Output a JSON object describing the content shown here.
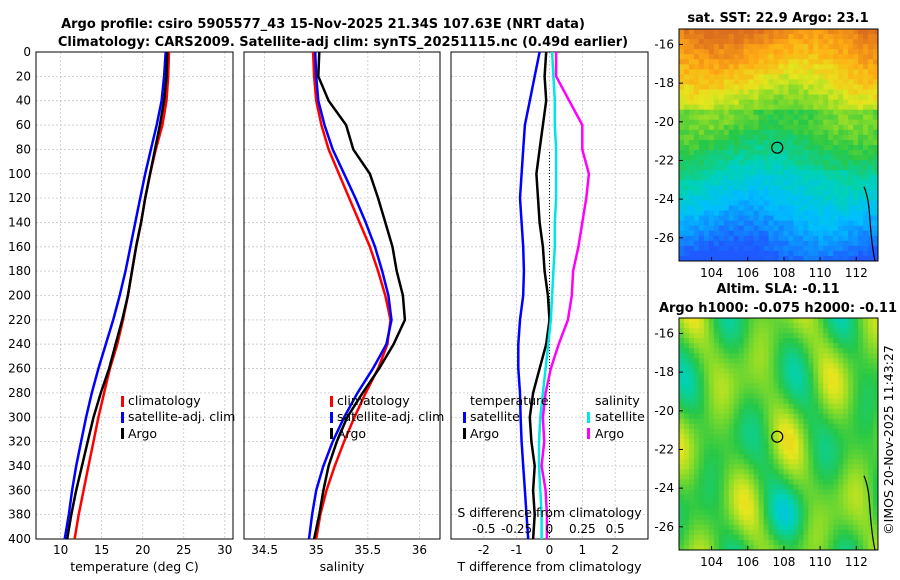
{
  "header": {
    "title_line1": "Argo profile: csiro 5905577_43 15-Nov-2025 21.34S 107.63E (NRT data)",
    "title_line2": "Climatology: CARS2009. Satellite-adj clim: synTS_20251115.nc (0.49d earlier)"
  },
  "watermark": "©IMOS 20-Nov-2025 11:43:27",
  "colors": {
    "climatology": "#ff0000",
    "satellite": "#0000ff",
    "argo": "#000000",
    "sal_satellite": "#00e5e5",
    "sal_argo": "#ff00ff"
  },
  "chart_data": [
    {
      "type": "line",
      "name": "temperature-profile",
      "xlabel": "temperature (deg C)",
      "ylabel": "",
      "xlim": [
        7,
        31
      ],
      "ylim": [
        400,
        0
      ],
      "xticks": [
        10,
        15,
        20,
        25,
        30
      ],
      "yticks": [
        0,
        20,
        40,
        60,
        80,
        100,
        120,
        140,
        160,
        180,
        200,
        220,
        240,
        260,
        280,
        300,
        320,
        340,
        360,
        380,
        400
      ],
      "legend": [
        "climatology",
        "satellite-adj. clim",
        "Argo"
      ],
      "legend_position": "right-middle",
      "series": [
        {
          "name": "climatology",
          "color": "#ff0000",
          "points": [
            [
              23.2,
              0
            ],
            [
              23.1,
              20
            ],
            [
              22.9,
              40
            ],
            [
              22.4,
              60
            ],
            [
              21.6,
              80
            ],
            [
              20.9,
              100
            ],
            [
              20.3,
              120
            ],
            [
              19.8,
              140
            ],
            [
              19.2,
              160
            ],
            [
              18.7,
              180
            ],
            [
              18.2,
              200
            ],
            [
              17.6,
              220
            ],
            [
              16.9,
              240
            ],
            [
              16.0,
              260
            ],
            [
              15.3,
              280
            ],
            [
              14.6,
              300
            ],
            [
              14.0,
              320
            ],
            [
              13.4,
              340
            ],
            [
              12.8,
              360
            ],
            [
              12.2,
              380
            ],
            [
              11.7,
              400
            ]
          ]
        },
        {
          "name": "satellite-adj. clim",
          "color": "#0000ff",
          "points": [
            [
              22.8,
              0
            ],
            [
              22.6,
              20
            ],
            [
              22.3,
              40
            ],
            [
              21.7,
              60
            ],
            [
              21.0,
              80
            ],
            [
              20.3,
              100
            ],
            [
              19.7,
              120
            ],
            [
              19.1,
              140
            ],
            [
              18.5,
              160
            ],
            [
              17.9,
              180
            ],
            [
              17.2,
              200
            ],
            [
              16.4,
              220
            ],
            [
              15.5,
              240
            ],
            [
              14.6,
              260
            ],
            [
              13.8,
              280
            ],
            [
              13.1,
              300
            ],
            [
              12.5,
              320
            ],
            [
              11.9,
              340
            ],
            [
              11.4,
              360
            ],
            [
              11.0,
              380
            ],
            [
              10.5,
              400
            ]
          ]
        },
        {
          "name": "Argo",
          "color": "#000000",
          "points": [
            [
              23.0,
              0
            ],
            [
              22.9,
              20
            ],
            [
              22.6,
              40
            ],
            [
              22.1,
              60
            ],
            [
              21.5,
              80
            ],
            [
              20.9,
              100
            ],
            [
              20.3,
              120
            ],
            [
              19.8,
              140
            ],
            [
              19.2,
              160
            ],
            [
              18.7,
              180
            ],
            [
              18.2,
              200
            ],
            [
              17.5,
              220
            ],
            [
              16.7,
              240
            ],
            [
              15.9,
              260
            ],
            [
              14.9,
              280
            ],
            [
              14.0,
              300
            ],
            [
              13.3,
              320
            ],
            [
              12.6,
              340
            ],
            [
              11.9,
              360
            ],
            [
              11.3,
              380
            ],
            [
              10.8,
              400
            ]
          ]
        }
      ]
    },
    {
      "type": "line",
      "name": "salinity-profile",
      "xlabel": "salinity",
      "ylabel": "",
      "xlim": [
        34.3,
        36.2
      ],
      "ylim": [
        400,
        0
      ],
      "xticks": [
        34.5,
        35,
        35.5,
        36
      ],
      "xtick_labels": [
        "34.5",
        "35",
        "35.5",
        "36"
      ],
      "legend": [
        "climatology",
        "satellite-adj. clim",
        "Argo"
      ],
      "legend_position": "right-middle",
      "series": [
        {
          "name": "climatology",
          "color": "#ff0000",
          "points": [
            [
              34.97,
              0
            ],
            [
              34.98,
              20
            ],
            [
              35.0,
              40
            ],
            [
              35.05,
              60
            ],
            [
              35.12,
              80
            ],
            [
              35.22,
              100
            ],
            [
              35.32,
              120
            ],
            [
              35.42,
              140
            ],
            [
              35.52,
              160
            ],
            [
              35.6,
              180
            ],
            [
              35.67,
              200
            ],
            [
              35.72,
              220
            ],
            [
              35.69,
              240
            ],
            [
              35.6,
              260
            ],
            [
              35.48,
              280
            ],
            [
              35.37,
              300
            ],
            [
              35.27,
              320
            ],
            [
              35.18,
              340
            ],
            [
              35.1,
              360
            ],
            [
              35.04,
              380
            ],
            [
              35.0,
              400
            ]
          ]
        },
        {
          "name": "satellite-adj. clim",
          "color": "#0000ff",
          "points": [
            [
              34.99,
              0
            ],
            [
              35.0,
              20
            ],
            [
              35.02,
              40
            ],
            [
              35.08,
              60
            ],
            [
              35.16,
              80
            ],
            [
              35.27,
              100
            ],
            [
              35.38,
              120
            ],
            [
              35.48,
              140
            ],
            [
              35.57,
              160
            ],
            [
              35.64,
              180
            ],
            [
              35.7,
              200
            ],
            [
              35.73,
              220
            ],
            [
              35.68,
              240
            ],
            [
              35.55,
              260
            ],
            [
              35.4,
              280
            ],
            [
              35.27,
              300
            ],
            [
              35.16,
              320
            ],
            [
              35.07,
              340
            ],
            [
              35.0,
              360
            ],
            [
              34.96,
              380
            ],
            [
              34.93,
              400
            ]
          ]
        },
        {
          "name": "Argo",
          "color": "#000000",
          "points": [
            [
              35.03,
              0
            ],
            [
              35.02,
              20
            ],
            [
              35.12,
              40
            ],
            [
              35.29,
              60
            ],
            [
              35.36,
              80
            ],
            [
              35.52,
              100
            ],
            [
              35.6,
              120
            ],
            [
              35.67,
              140
            ],
            [
              35.74,
              160
            ],
            [
              35.78,
              180
            ],
            [
              35.84,
              200
            ],
            [
              35.86,
              220
            ],
            [
              35.75,
              240
            ],
            [
              35.61,
              260
            ],
            [
              35.45,
              280
            ],
            [
              35.3,
              300
            ],
            [
              35.2,
              320
            ],
            [
              35.12,
              340
            ],
            [
              35.07,
              360
            ],
            [
              35.03,
              380
            ],
            [
              34.98,
              400
            ]
          ]
        }
      ]
    },
    {
      "type": "line",
      "name": "difference-profile",
      "xlabel": "T difference from climatology",
      "top_xlabel": "S difference from climatology",
      "xlim": [
        -3,
        3
      ],
      "ylim": [
        400,
        0
      ],
      "xticks": [
        -2,
        -1,
        0,
        1,
        2
      ],
      "xtick_labels": [
        "-2",
        "-1",
        "0",
        "1",
        "2"
      ],
      "top_xticks": [
        -0.5,
        -0.25,
        0,
        0.25,
        0.5
      ],
      "top_xtick_labels": [
        "-0.5",
        "-0.25",
        "0",
        "0.25",
        "0.5"
      ],
      "top_xlim": [
        -0.75,
        0.75
      ],
      "legend_temperature_title": "temperature",
      "legend_temperature": [
        "satellite",
        "Argo"
      ],
      "legend_salinity_title": "salinity",
      "legend_salinity": [
        "satellite",
        "Argo"
      ],
      "series": [
        {
          "name": "T satellite",
          "color": "#0000ff",
          "points": [
            [
              -0.3,
              0
            ],
            [
              -0.45,
              20
            ],
            [
              -0.6,
              40
            ],
            [
              -0.75,
              60
            ],
            [
              -0.8,
              80
            ],
            [
              -0.85,
              100
            ],
            [
              -0.9,
              120
            ],
            [
              -0.85,
              140
            ],
            [
              -0.8,
              160
            ],
            [
              -0.78,
              180
            ],
            [
              -0.8,
              200
            ],
            [
              -0.9,
              220
            ],
            [
              -0.95,
              240
            ],
            [
              -0.95,
              260
            ],
            [
              -0.9,
              280
            ],
            [
              -0.88,
              300
            ],
            [
              -0.85,
              320
            ],
            [
              -0.8,
              340
            ],
            [
              -0.75,
              360
            ],
            [
              -0.7,
              380
            ],
            [
              -0.65,
              400
            ]
          ]
        },
        {
          "name": "T Argo",
          "color": "#000000",
          "points": [
            [
              -0.1,
              0
            ],
            [
              -0.15,
              20
            ],
            [
              -0.1,
              40
            ],
            [
              -0.2,
              60
            ],
            [
              -0.3,
              80
            ],
            [
              -0.4,
              100
            ],
            [
              -0.35,
              120
            ],
            [
              -0.3,
              140
            ],
            [
              -0.2,
              160
            ],
            [
              -0.15,
              180
            ],
            [
              -0.05,
              200
            ],
            [
              0.0,
              220
            ],
            [
              -0.1,
              240
            ],
            [
              -0.3,
              260
            ],
            [
              -0.5,
              280
            ],
            [
              -0.6,
              300
            ],
            [
              -0.55,
              320
            ],
            [
              -0.45,
              340
            ],
            [
              -0.5,
              360
            ],
            [
              -0.45,
              380
            ],
            [
              -0.5,
              400
            ]
          ]
        },
        {
          "name": "S satellite",
          "color": "#00e5e5",
          "points": [
            [
              0.02,
              0
            ],
            [
              0.03,
              20
            ],
            [
              0.04,
              40
            ],
            [
              0.04,
              60
            ],
            [
              0.05,
              80
            ],
            [
              0.05,
              100
            ],
            [
              0.05,
              120
            ],
            [
              0.04,
              140
            ],
            [
              0.04,
              160
            ],
            [
              0.03,
              180
            ],
            [
              0.02,
              200
            ],
            [
              0.01,
              220
            ],
            [
              -0.01,
              240
            ],
            [
              -0.03,
              260
            ],
            [
              -0.05,
              280
            ],
            [
              -0.07,
              300
            ],
            [
              -0.08,
              320
            ],
            [
              -0.08,
              340
            ],
            [
              -0.07,
              360
            ],
            [
              -0.06,
              380
            ],
            [
              -0.06,
              400
            ]
          ]
        },
        {
          "name": "S Argo",
          "color": "#ff00ff",
          "points": [
            [
              0.05,
              0
            ],
            [
              0.05,
              20
            ],
            [
              0.15,
              40
            ],
            [
              0.25,
              60
            ],
            [
              0.25,
              80
            ],
            [
              0.3,
              100
            ],
            [
              0.28,
              120
            ],
            [
              0.25,
              140
            ],
            [
              0.22,
              160
            ],
            [
              0.18,
              180
            ],
            [
              0.17,
              200
            ],
            [
              0.14,
              220
            ],
            [
              0.07,
              240
            ],
            [
              0.01,
              260
            ],
            [
              -0.03,
              280
            ],
            [
              -0.05,
              300
            ],
            [
              -0.04,
              320
            ],
            [
              -0.06,
              340
            ],
            [
              -0.03,
              360
            ],
            [
              -0.02,
              380
            ],
            [
              -0.02,
              400
            ]
          ]
        }
      ]
    },
    {
      "type": "heatmap",
      "name": "sst-map",
      "title": "sat. SST: 22.9 Argo: 23.1",
      "xlim": [
        102.2,
        113.2
      ],
      "ylim": [
        -27.2,
        -15.2
      ],
      "xticks": [
        104,
        106,
        108,
        110,
        112
      ],
      "yticks": [
        -16,
        -18,
        -20,
        -22,
        -24,
        -26
      ],
      "marker": {
        "lon": 107.63,
        "lat": -21.34
      }
    },
    {
      "type": "heatmap",
      "name": "sla-map",
      "title_line1": "Altim. SLA: -0.11",
      "title_line2": "Argo h1000: -0.075 h2000: -0.11",
      "xlim": [
        102.2,
        113.2
      ],
      "ylim": [
        -27.2,
        -15.2
      ],
      "xticks": [
        104,
        106,
        108,
        110,
        112
      ],
      "yticks": [
        -16,
        -18,
        -20,
        -22,
        -24,
        -26
      ],
      "marker": {
        "lon": 107.63,
        "lat": -21.34
      }
    }
  ]
}
